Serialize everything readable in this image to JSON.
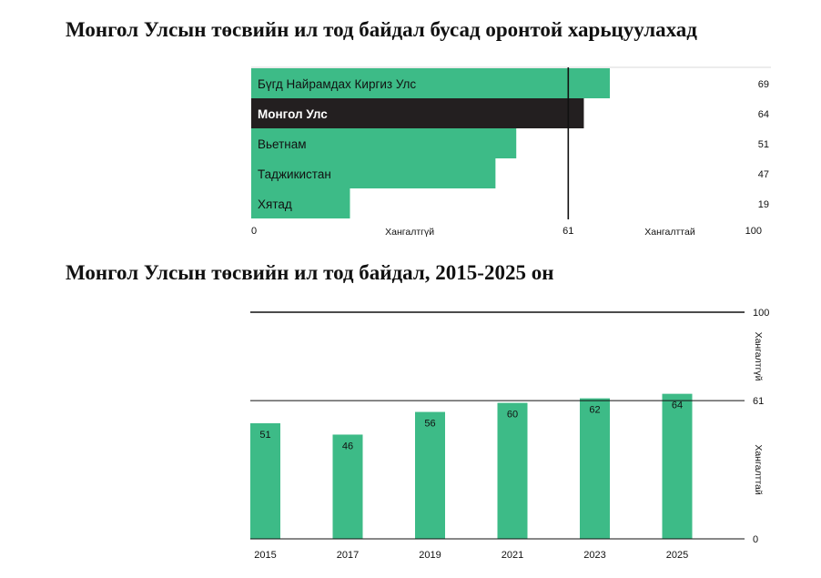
{
  "chart_data": [
    {
      "type": "bar",
      "orientation": "horizontal",
      "title": "Монгол Улсын төсвийн ил тод байдал бусад оронтой харьцуулахад",
      "categories": [
        "Бүгд Найрамдах Киргиз Улс",
        "Монгол Улс",
        "Вьетнам",
        "Таджикистан",
        "Хятад"
      ],
      "values": [
        69,
        64,
        51,
        47,
        19
      ],
      "highlight": "Монгол Улс",
      "xlim": [
        0,
        100
      ],
      "threshold": 61,
      "axis_labels": {
        "min": "0",
        "threshold": "61",
        "max": "100"
      },
      "zone_labels": {
        "below": "Хангалтгүй",
        "above": "Хангалттай"
      },
      "colors": {
        "bar": "#3dbb87",
        "highlight": "#231f20",
        "line": "#111111"
      }
    },
    {
      "type": "bar",
      "orientation": "vertical",
      "title": "Монгол Улсын төсвийн ил тод байдал, 2015-2025 он",
      "categories": [
        "2015",
        "2017",
        "2019",
        "2021",
        "2023",
        "2025"
      ],
      "values": [
        51,
        46,
        56,
        60,
        62,
        64
      ],
      "ylim": [
        0,
        100
      ],
      "threshold": 61,
      "axis_labels": {
        "max": "100",
        "threshold": "61",
        "min": "0"
      },
      "zone_labels": {
        "upper": "Хангалтгүй",
        "lower": "Хангалттай"
      },
      "colors": {
        "bar": "#3dbb87",
        "line": "#111111"
      }
    }
  ]
}
